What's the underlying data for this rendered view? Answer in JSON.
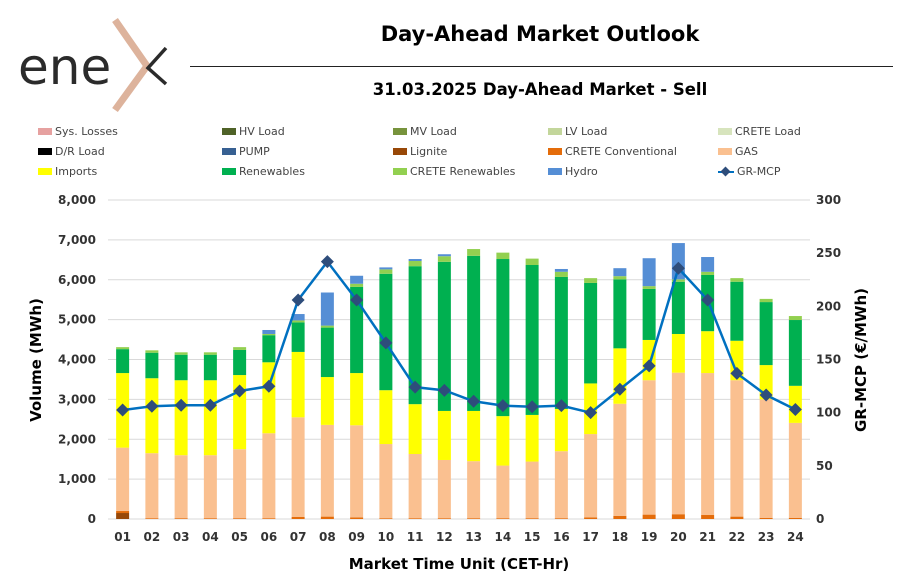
{
  "header": {
    "logo_text": "enex",
    "title": "Day-Ahead Market Outlook",
    "subtitle": "31.03.2025  Day-Ahead Market - Sell"
  },
  "chart_data": {
    "type": "bar",
    "stacked": true,
    "xlabel": "Market Time Unit (CET-Hr)",
    "ylabel": "Volume (MWh)",
    "y2label": "GR-MCP (€/MWh)",
    "ylim": [
      0,
      8000
    ],
    "y2lim": [
      0,
      300
    ],
    "yticks": [
      "0",
      "1,000",
      "2,000",
      "3,000",
      "4,000",
      "5,000",
      "6,000",
      "7,000",
      "8,000"
    ],
    "y2ticks": [
      "0",
      "50",
      "100",
      "150",
      "200",
      "250",
      "300"
    ],
    "grid": true,
    "legend_position": "top",
    "categories": [
      "01",
      "02",
      "03",
      "04",
      "05",
      "06",
      "07",
      "08",
      "09",
      "10",
      "11",
      "12",
      "13",
      "14",
      "15",
      "16",
      "17",
      "18",
      "19",
      "20",
      "21",
      "22",
      "23",
      "24"
    ],
    "legend": [
      {
        "name": "Sys. Losses",
        "color": "#e6a1a0",
        "kind": "bar"
      },
      {
        "name": "HV Load",
        "color": "#4f6228",
        "kind": "bar"
      },
      {
        "name": "MV Load",
        "color": "#77933c",
        "kind": "bar"
      },
      {
        "name": "LV Load",
        "color": "#c3d69b",
        "kind": "bar"
      },
      {
        "name": "CRETE Load",
        "color": "#d7e4bd",
        "kind": "bar"
      },
      {
        "name": "D/R Load",
        "color": "#000000",
        "kind": "bar"
      },
      {
        "name": "PUMP",
        "color": "#376092",
        "kind": "bar"
      },
      {
        "name": "Lignite",
        "color": "#984807",
        "kind": "bar"
      },
      {
        "name": "CRETE Conventional",
        "color": "#e46c0a",
        "kind": "bar"
      },
      {
        "name": "GAS",
        "color": "#fac090",
        "kind": "bar"
      },
      {
        "name": "Imports",
        "color": "#ffff00",
        "kind": "bar"
      },
      {
        "name": "Renewables",
        "color": "#00b050",
        "kind": "bar"
      },
      {
        "name": "CRETE Renewables",
        "color": "#92d050",
        "kind": "bar"
      },
      {
        "name": "Hydro",
        "color": "#558ed5",
        "kind": "bar"
      },
      {
        "name": "GR-MCP",
        "color": "#0070c0",
        "kind": "line"
      }
    ],
    "series": [
      {
        "name": "Lignite",
        "color": "#984807",
        "values": [
          150,
          0,
          0,
          0,
          0,
          0,
          0,
          0,
          0,
          0,
          0,
          0,
          0,
          0,
          0,
          0,
          0,
          0,
          0,
          0,
          0,
          0,
          0,
          0
        ]
      },
      {
        "name": "CRETE Conventional",
        "color": "#e46c0a",
        "values": [
          50,
          20,
          20,
          20,
          20,
          20,
          50,
          60,
          40,
          20,
          20,
          20,
          20,
          20,
          20,
          20,
          40,
          80,
          110,
          120,
          100,
          60,
          30,
          30
        ]
      },
      {
        "name": "GAS",
        "color": "#fac090",
        "values": [
          1590,
          1630,
          1580,
          1580,
          1730,
          2130,
          2500,
          2300,
          2310,
          1860,
          1610,
          1460,
          1430,
          1320,
          1420,
          1680,
          2090,
          2810,
          3370,
          3550,
          3560,
          3420,
          2970,
          2380
        ]
      },
      {
        "name": "Imports",
        "color": "#ffff00",
        "values": [
          1870,
          1880,
          1880,
          1880,
          1860,
          1780,
          1640,
          1200,
          1310,
          1350,
          1250,
          1230,
          1260,
          1240,
          1170,
          1060,
          1270,
          1390,
          1010,
          970,
          1050,
          990,
          860,
          930
        ]
      },
      {
        "name": "Renewables",
        "color": "#00b050",
        "values": [
          600,
          640,
          640,
          640,
          630,
          680,
          740,
          1240,
          2160,
          2920,
          3460,
          3740,
          3890,
          3940,
          3760,
          3310,
          2520,
          1730,
          1280,
          1310,
          1410,
          1480,
          1580,
          1650
        ]
      },
      {
        "name": "CRETE Renewables",
        "color": "#92d050",
        "values": [
          50,
          60,
          60,
          60,
          70,
          30,
          50,
          50,
          80,
          110,
          130,
          140,
          170,
          160,
          160,
          130,
          120,
          80,
          70,
          60,
          80,
          90,
          80,
          100
        ]
      },
      {
        "name": "Hydro",
        "color": "#558ed5",
        "values": [
          0,
          0,
          0,
          0,
          0,
          100,
          160,
          830,
          200,
          50,
          50,
          50,
          0,
          0,
          0,
          70,
          0,
          200,
          700,
          910,
          370,
          0,
          0,
          0
        ]
      }
    ],
    "line": {
      "name": "GR-MCP",
      "color": "#0070c0",
      "marker_color": "#2e4d7b",
      "axis": "right",
      "values": [
        102.5,
        106,
        107,
        107,
        120.4,
        124.8,
        206,
        242,
        206,
        165.6,
        124,
        121,
        110.7,
        106.6,
        105.6,
        106.6,
        100,
        122,
        144,
        235.8,
        206,
        137,
        116.6,
        103
      ]
    }
  }
}
